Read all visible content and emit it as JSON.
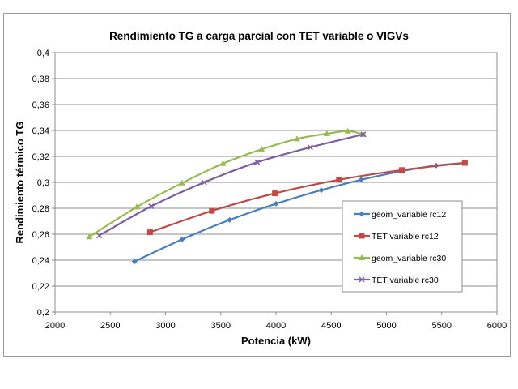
{
  "chart_data": {
    "type": "line",
    "title": "Rendimiento TG a carga parcial con TET variable o VIGVs",
    "xlabel": "Potencia (kW)",
    "ylabel": "Rendimiento térmico TG",
    "xlim": [
      2000,
      6000
    ],
    "ylim": [
      0.2,
      0.4
    ],
    "xticks": [
      2000,
      2500,
      3000,
      3500,
      4000,
      4500,
      5000,
      5500,
      6000
    ],
    "yticks": [
      "0,2",
      "0,22",
      "0,24",
      "0,26",
      "0,28",
      "0,3",
      "0,32",
      "0,34",
      "0,36",
      "0,38",
      "0,4"
    ],
    "grid": "horizontal",
    "legend_position": "right",
    "series": [
      {
        "name": "geom_variable rc12",
        "color": "#4a7ebb",
        "marker": "diamond",
        "x": [
          2720,
          3150,
          3580,
          4000,
          4410,
          4770,
          5130,
          5450,
          5710
        ],
        "y": [
          0.239,
          0.256,
          0.271,
          0.2835,
          0.294,
          0.302,
          0.3085,
          0.313,
          0.315
        ]
      },
      {
        "name": "TET variable rc12",
        "color": "#be4b48",
        "marker": "square",
        "x": [
          2860,
          3420,
          3990,
          4570,
          5140,
          5710
        ],
        "y": [
          0.2615,
          0.278,
          0.2915,
          0.302,
          0.3095,
          0.315
        ]
      },
      {
        "name": "geom_variable rc30",
        "color": "#98b954",
        "marker": "triangle",
        "x": [
          2310,
          2740,
          3150,
          3520,
          3870,
          4190,
          4460,
          4650,
          4790
        ],
        "y": [
          0.258,
          0.281,
          0.2995,
          0.3145,
          0.3255,
          0.3335,
          0.3375,
          0.3395,
          0.337
        ]
      },
      {
        "name": "TET variable rc30",
        "color": "#7d60a0",
        "marker": "x",
        "x": [
          2400,
          2870,
          3350,
          3830,
          4310,
          4790
        ],
        "y": [
          0.259,
          0.2815,
          0.3,
          0.3155,
          0.327,
          0.337
        ]
      }
    ]
  }
}
